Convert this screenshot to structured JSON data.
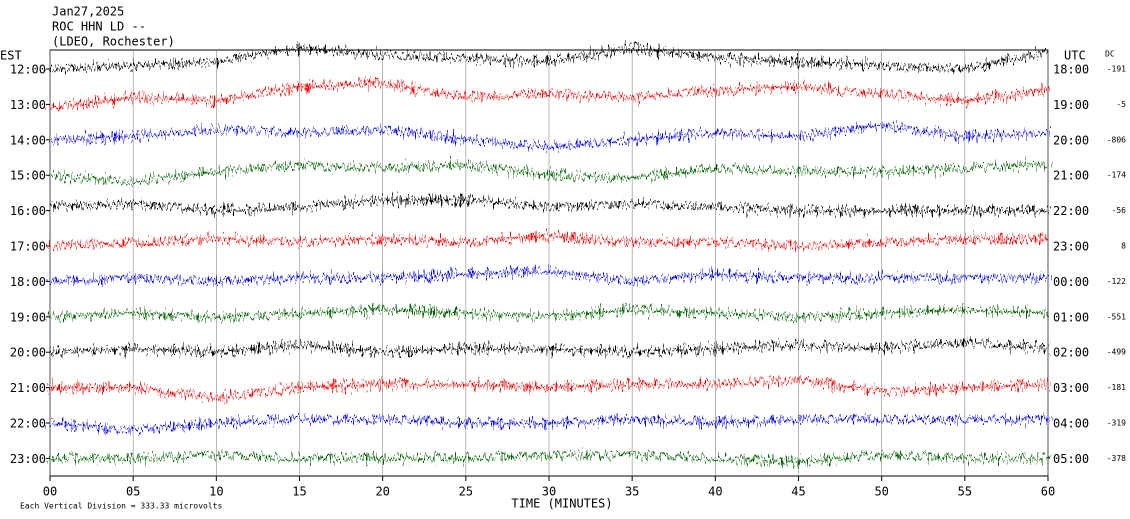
{
  "chart_data": {
    "type": "helicorder",
    "title": [
      "Jan27,2025",
      "ROC HHN LD --",
      "(LDEO, Rochester)"
    ],
    "left_axis_label": "EST",
    "right_axis_label": "UTC",
    "dc_label": "DC",
    "xlabel": "TIME (MINUTES)",
    "footnote": "Each Vertical Division =  333.33 microvolts",
    "xlim": [
      0,
      60
    ],
    "xticks": [
      {
        "value": 0,
        "label": "00"
      },
      {
        "value": 5,
        "label": "05"
      },
      10,
      15,
      20,
      25,
      30,
      35,
      40,
      45,
      50,
      55,
      60
    ],
    "grid": true,
    "rows_left": [
      "12:00",
      "13:00",
      "14:00",
      "15:00",
      "16:00",
      "17:00",
      "18:00",
      "19:00",
      "20:00",
      "21:00",
      "22:00",
      "23:00"
    ],
    "rows_right": [
      "18:00",
      "19:00",
      "20:00",
      "21:00",
      "22:00",
      "23:00",
      "00:00",
      "01:00",
      "02:00",
      "03:00",
      "04:00",
      "05:00"
    ],
    "dc": [
      -191,
      -5,
      -806,
      -174,
      -56,
      8,
      -122,
      -551,
      -499,
      -181,
      -319,
      -378
    ],
    "x": [
      0,
      5,
      10,
      15,
      20,
      25,
      30,
      35,
      40,
      45,
      50,
      55,
      60
    ],
    "series": [
      {
        "color": "#000000",
        "values": [
          0,
          0.1,
          0.2,
          0.6,
          0.4,
          0.3,
          0.2,
          0.6,
          0.3,
          0.2,
          0.1,
          0,
          0.5
        ]
      },
      {
        "color": "#ff0000",
        "values": [
          -0.1,
          0.2,
          0.1,
          0.5,
          0.6,
          0.2,
          0.3,
          0.2,
          0.4,
          0.5,
          0.3,
          0.1,
          0.4
        ]
      },
      {
        "color": "#0000ff",
        "values": [
          0,
          0.1,
          0.3,
          0.2,
          0.3,
          0,
          -0.2,
          0,
          0.2,
          0.1,
          0.4,
          0.1,
          0.2
        ]
      },
      {
        "color": "#006400",
        "values": [
          0,
          -0.2,
          0.1,
          0.3,
          0.2,
          0.3,
          0,
          -0.1,
          0.2,
          0.1,
          0.1,
          0.2,
          0.3
        ]
      },
      {
        "color": "#000000",
        "values": [
          0.1,
          0.2,
          0,
          0.1,
          0.3,
          0.3,
          0.1,
          0.2,
          0.1,
          0,
          0,
          0,
          0
        ]
      },
      {
        "color": "#ff0000",
        "values": [
          0,
          0.1,
          0.2,
          0.1,
          0.2,
          0.1,
          0.3,
          0.1,
          0.1,
          0,
          0.1,
          0.2,
          0.2
        ]
      },
      {
        "color": "#0000ff",
        "values": [
          0,
          0.1,
          0,
          0.1,
          0.1,
          0.2,
          0.3,
          0,
          0.2,
          0.1,
          0.1,
          0.1,
          0.1
        ]
      },
      {
        "color": "#006400",
        "values": [
          0,
          0.1,
          0,
          0.1,
          0.2,
          0.1,
          0,
          0.2,
          0.1,
          0,
          0.1,
          0.2,
          0.1
        ]
      },
      {
        "color": "#000000",
        "values": [
          0,
          0.1,
          0,
          0.2,
          0,
          0.1,
          0.1,
          0,
          0.1,
          0.2,
          0.1,
          0.3,
          0.1
        ]
      },
      {
        "color": "#ff0000",
        "values": [
          0,
          0,
          -0.3,
          0,
          0.1,
          0.1,
          0,
          0.1,
          0.1,
          0.2,
          -0.1,
          0,
          0.1
        ]
      },
      {
        "color": "#0000ff",
        "values": [
          0,
          -0.2,
          0,
          0.1,
          0.1,
          0,
          0,
          0.1,
          0,
          0.1,
          0.1,
          0.1,
          0.1
        ]
      },
      {
        "color": "#006400",
        "values": [
          0,
          0,
          0.1,
          0,
          0,
          0,
          0.1,
          0.1,
          0,
          -0.1,
          0.1,
          0,
          0
        ]
      }
    ]
  }
}
